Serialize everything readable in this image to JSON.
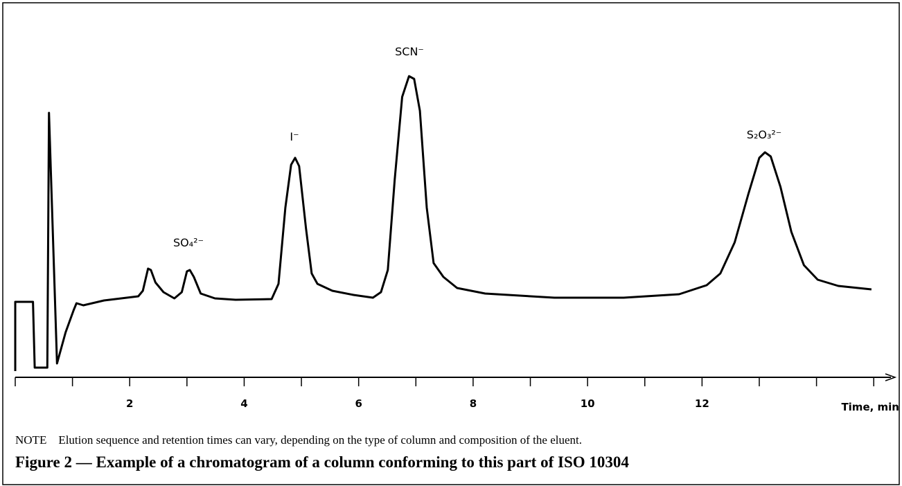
{
  "chart_data": {
    "type": "line",
    "x_label": "Time, min",
    "note": "NOTE Elution sequence and retention times can vary, depending on the type of column and composition of the eluent.",
    "caption": "Figure 2 — Example of a chromatogram of a column conforming to this part of ISO 10304",
    "annotations": [
      "SO₄²⁻",
      "I⁻",
      "SCN⁻",
      "S₂O₃²⁻"
    ],
    "xlim": [
      0,
      15.3
    ],
    "ylim": [
      0,
      100
    ],
    "xticks": [
      2,
      4,
      6,
      8,
      10,
      12
    ],
    "minor_xticks": [
      0,
      1,
      3,
      5,
      7,
      9,
      11,
      13,
      14,
      15
    ],
    "color": "#000000",
    "x": [
      0,
      0,
      0.31,
      0.34,
      0.56,
      0.59,
      0.73,
      0.88,
      1.02,
      1.07,
      1.19,
      1.55,
      2.15,
      2.23,
      2.32,
      2.37,
      2.45,
      2.59,
      2.78,
      2.91,
      3.0,
      3.05,
      3.12,
      3.24,
      3.49,
      3.85,
      4.48,
      4.6,
      4.72,
      4.82,
      4.89,
      4.96,
      5.08,
      5.18,
      5.28,
      5.54,
      5.91,
      6.25,
      6.39,
      6.51,
      6.63,
      6.76,
      6.88,
      6.97,
      7.07,
      7.19,
      7.31,
      7.48,
      7.72,
      8.21,
      9.42,
      10.63,
      11.6,
      12.08,
      12.32,
      12.57,
      12.81,
      13.0,
      13.1,
      13.2,
      13.37,
      13.56,
      13.78,
      14.02,
      14.38,
      14.96
    ],
    "values": [
      1.8,
      21.8,
      21.8,
      2.8,
      2.8,
      76.4,
      4,
      13,
      19.4,
      21.4,
      20.8,
      22.2,
      23.4,
      25,
      31.4,
      31,
      27.4,
      24.6,
      22.8,
      24.6,
      30.6,
      31,
      29,
      24.2,
      22.8,
      22.4,
      22.6,
      27,
      49,
      61.4,
      63.4,
      61,
      43,
      30,
      27,
      25,
      23.8,
      23,
      24.6,
      31,
      57,
      81,
      87,
      86.2,
      77,
      49,
      33,
      29,
      25.8,
      24.2,
      23,
      23,
      24,
      26.6,
      30,
      39,
      53,
      63.4,
      65,
      63.8,
      55,
      42,
      32.4,
      28.2,
      26.4,
      25.4
    ]
  }
}
